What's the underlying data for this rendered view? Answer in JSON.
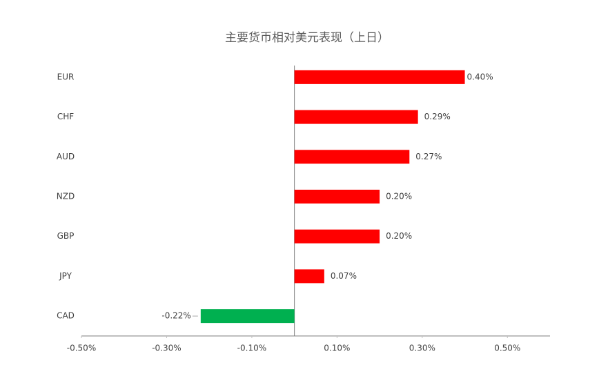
{
  "chart_data": {
    "type": "bar",
    "orientation": "horizontal",
    "title": "主要货币相对美元表现（上日）",
    "categories": [
      "EUR",
      "CHF",
      "AUD",
      "NZD",
      "GBP",
      "JPY",
      "CAD"
    ],
    "values": [
      0.4,
      0.29,
      0.27,
      0.2,
      0.2,
      0.07,
      -0.22
    ],
    "value_labels": [
      "0.40%",
      "0.29%",
      "0.27%",
      "0.20%",
      "0.20%",
      "0.07%",
      "-0.22%"
    ],
    "color": "#ff0000",
    "negative_color": "#00b050",
    "xlim": [
      -0.5,
      0.6
    ],
    "xticks": [
      {
        "value": -0.5,
        "label": "-0.50%"
      },
      {
        "value": -0.3,
        "label": "-0.30%"
      },
      {
        "value": -0.1,
        "label": "-0.10%"
      },
      {
        "value": 0.1,
        "label": "0.10%"
      },
      {
        "value": 0.3,
        "label": "0.30%"
      },
      {
        "value": 0.5,
        "label": "0.50%"
      }
    ],
    "grid": false
  }
}
